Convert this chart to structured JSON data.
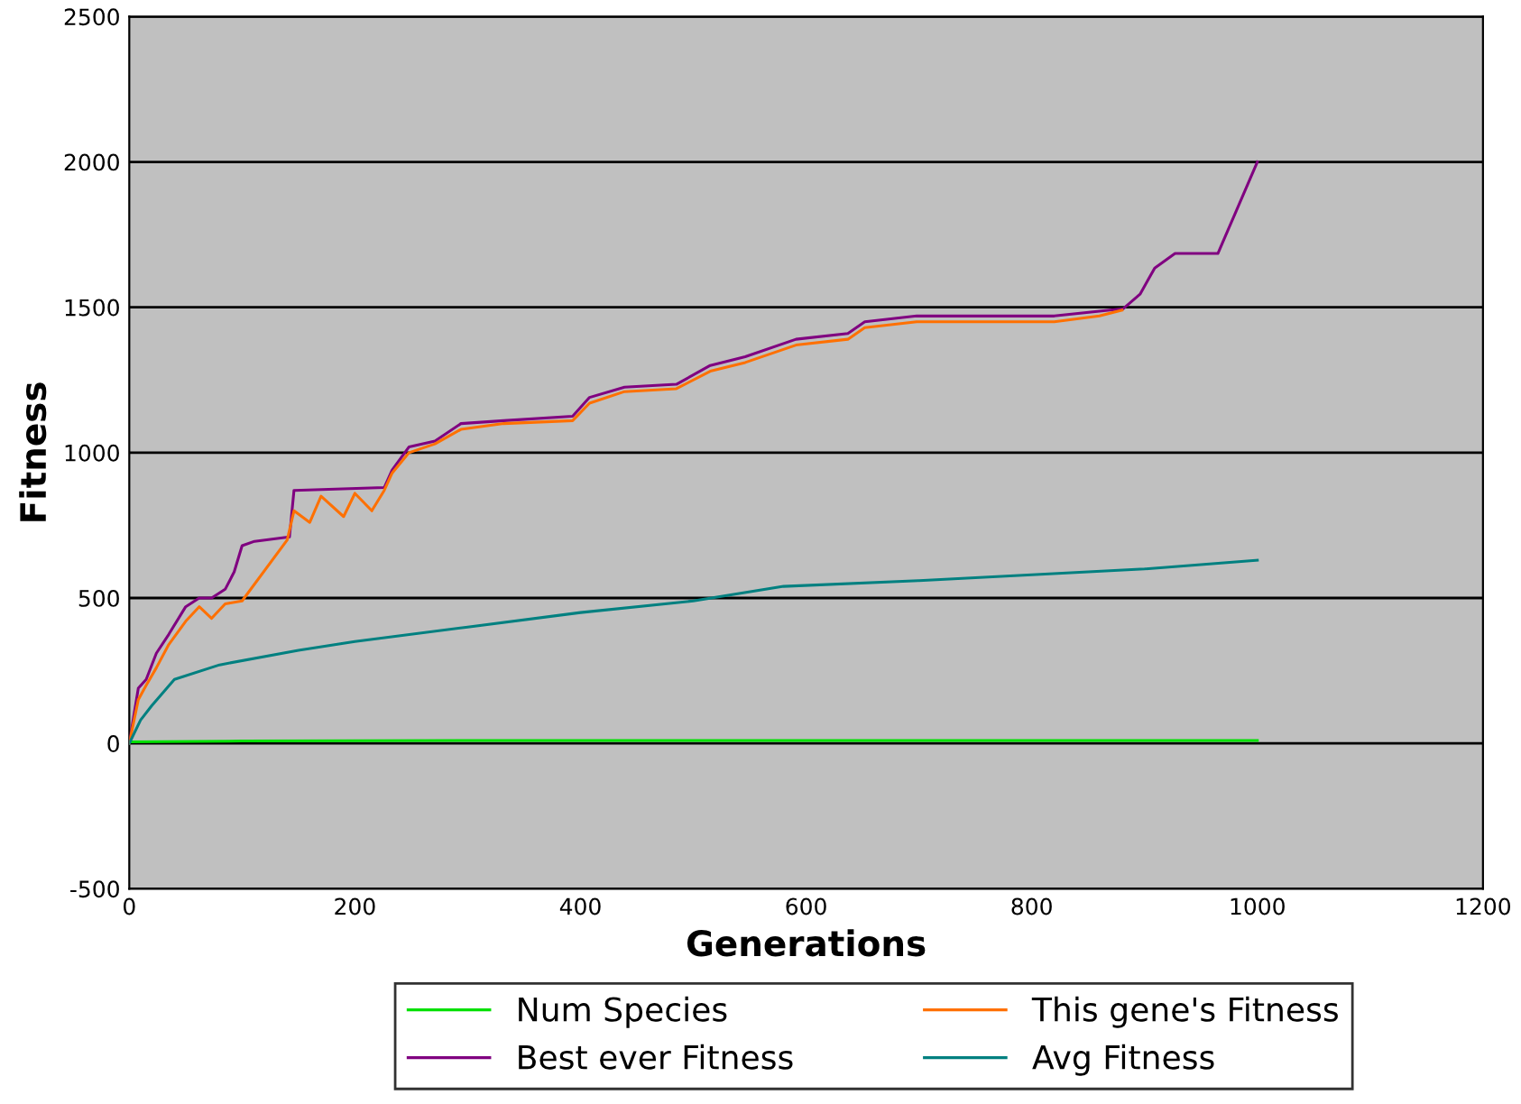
{
  "chart_data": {
    "type": "line",
    "xlabel": "Generations",
    "ylabel": "Fitness",
    "xlim": [
      0,
      1200
    ],
    "xticks": [
      0,
      200,
      400,
      600,
      800,
      1000,
      1200
    ],
    "ylim": [
      -500,
      2500
    ],
    "yticks": [
      -500,
      0,
      500,
      1000,
      1500,
      2000,
      2500
    ],
    "grid": "y",
    "legend": "bottom",
    "marker": "none",
    "line_style": "solid",
    "series": [
      {
        "name": "Num Species",
        "color": "#00e000",
        "x": [
          0,
          100,
          300,
          500,
          700,
          900,
          1000
        ],
        "values": [
          5,
          8,
          10,
          10,
          10,
          10,
          10
        ]
      },
      {
        "name": "Best ever Fitness",
        "color": "#800080",
        "x": [
          0,
          8,
          15,
          24,
          35,
          50,
          62,
          73,
          85,
          93,
          100,
          111,
          142,
          146,
          226,
          233,
          248,
          271,
          294,
          332,
          393,
          408,
          439,
          485,
          515,
          546,
          591,
          637,
          652,
          698,
          820,
          881,
          896,
          909,
          927,
          965,
          980,
          1000
        ],
        "values": [
          0,
          190,
          220,
          310,
          375,
          470,
          500,
          500,
          530,
          590,
          680,
          695,
          710,
          870,
          880,
          940,
          1020,
          1040,
          1100,
          1110,
          1125,
          1190,
          1225,
          1235,
          1300,
          1330,
          1390,
          1410,
          1450,
          1470,
          1470,
          1495,
          1545,
          1635,
          1685,
          1685,
          1820,
          2000
        ]
      },
      {
        "name": "This gene's Fitness",
        "color": "#ff7000",
        "x": [
          0,
          8,
          15,
          24,
          35,
          50,
          62,
          73,
          85,
          100,
          140,
          146,
          160,
          170,
          190,
          200,
          215,
          226,
          233,
          248,
          271,
          294,
          332,
          393,
          408,
          439,
          485,
          515,
          546,
          591,
          637,
          652,
          698,
          820,
          860,
          880
        ],
        "values": [
          0,
          150,
          200,
          260,
          340,
          420,
          470,
          430,
          480,
          490,
          700,
          800,
          760,
          850,
          780,
          860,
          800,
          870,
          930,
          1000,
          1030,
          1080,
          1100,
          1110,
          1170,
          1210,
          1220,
          1280,
          1310,
          1370,
          1390,
          1430,
          1450,
          1450,
          1470,
          1490
        ]
      },
      {
        "name": "Avg Fitness",
        "color": "#008080",
        "x": [
          0,
          10,
          20,
          40,
          80,
          150,
          200,
          300,
          400,
          500,
          580,
          700,
          800,
          900,
          1000
        ],
        "values": [
          0,
          80,
          130,
          220,
          270,
          320,
          350,
          400,
          450,
          490,
          540,
          560,
          580,
          600,
          630
        ]
      }
    ]
  }
}
